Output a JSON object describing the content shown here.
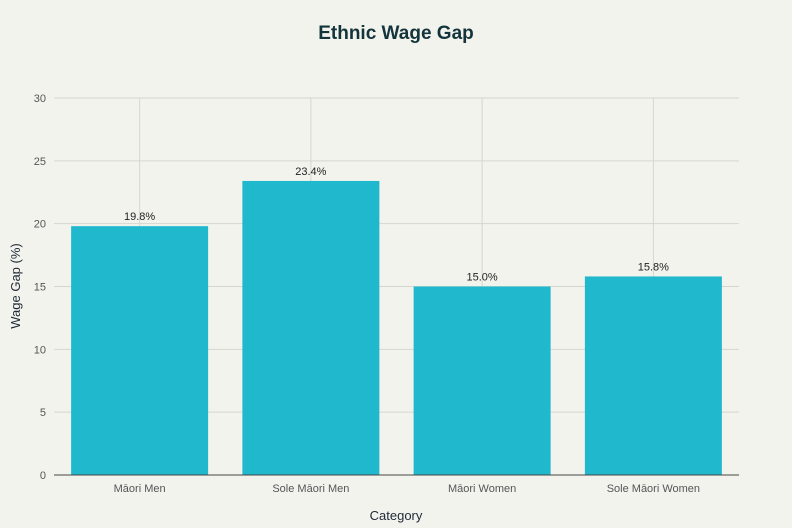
{
  "chart_data": {
    "type": "bar",
    "title": "Ethnic Wage Gap",
    "xlabel": "Category",
    "ylabel": "Wage Gap (%)",
    "categories": [
      "Māori Men",
      "Sole Māori Men",
      "Māori Women",
      "Sole Māori Women"
    ],
    "values": [
      19.8,
      23.4,
      15.0,
      15.8
    ],
    "value_labels": [
      "19.8%",
      "23.4%",
      "15.0%",
      "15.8%"
    ],
    "ylim": [
      0,
      30
    ],
    "yticks": [
      0,
      5,
      10,
      15,
      20,
      25,
      30
    ],
    "grid": true,
    "legend": "none",
    "bar_color": "#1fb8cd"
  }
}
